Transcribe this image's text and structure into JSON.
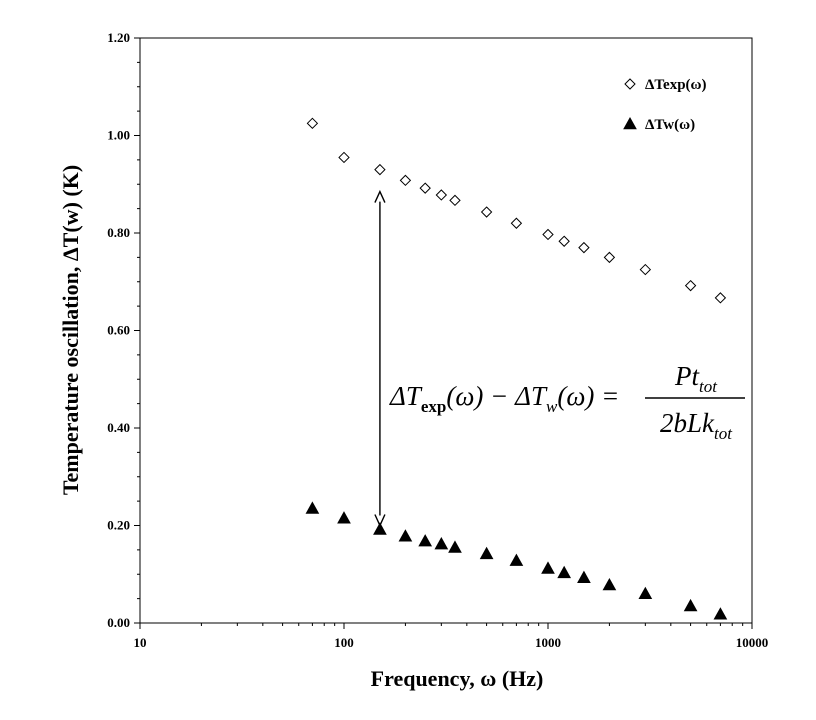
{
  "chart_data": {
    "type": "scatter",
    "xscale": "log",
    "xlim": [
      10,
      10000
    ],
    "ylim": [
      0,
      1.2
    ],
    "x_ticks": [
      "10",
      "100",
      "1000",
      "10000"
    ],
    "y_ticks": [
      "0.00",
      "0.20",
      "0.40",
      "0.60",
      "0.80",
      "1.00",
      "1.20"
    ],
    "xlabel": "Frequency, ω (Hz)",
    "ylabel": "Temperature oscillation, ΔT(w) (K)",
    "grid": false,
    "legend_position": "top-right",
    "series": [
      {
        "name": "ΔTexp(ω)",
        "marker": "open-diamond",
        "x": [
          70,
          100,
          150,
          200,
          250,
          300,
          350,
          500,
          700,
          1000,
          1200,
          1500,
          2000,
          3000,
          5000,
          7000
        ],
        "y": [
          1.025,
          0.955,
          0.93,
          0.908,
          0.892,
          0.878,
          0.867,
          0.843,
          0.82,
          0.797,
          0.783,
          0.77,
          0.75,
          0.725,
          0.692,
          0.667
        ]
      },
      {
        "name": "ΔTw(ω)",
        "marker": "filled-triangle",
        "x": [
          70,
          100,
          150,
          200,
          250,
          300,
          350,
          500,
          700,
          1000,
          1200,
          1500,
          2000,
          3000,
          5000,
          7000
        ],
        "y": [
          0.235,
          0.215,
          0.192,
          0.178,
          0.168,
          0.162,
          0.155,
          0.142,
          0.128,
          0.112,
          0.103,
          0.093,
          0.078,
          0.06,
          0.035,
          0.018
        ]
      }
    ],
    "annotations": {
      "arrow": {
        "x": 150,
        "y_from": 0.2,
        "y_to": 0.885
      },
      "equation": {
        "lhs": "ΔT",
        "lhs_sub": "exp",
        "mid1": "(ω) − ΔT",
        "mid_sub": "w",
        "mid2": "(ω) =",
        "num": "Pt",
        "num_sub": "tot",
        "den": "2bLk",
        "den_sub": "tot"
      }
    }
  }
}
